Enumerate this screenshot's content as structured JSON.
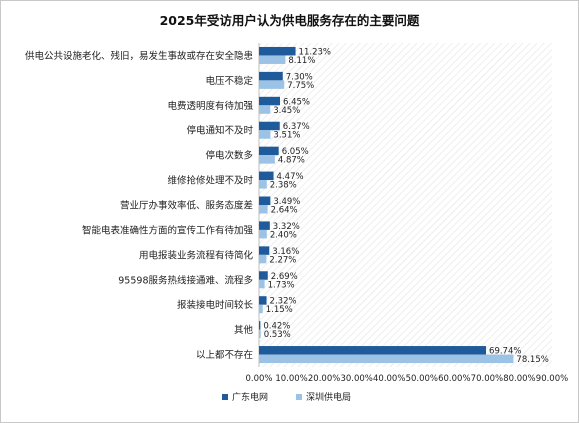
{
  "chart_data": {
    "type": "bar",
    "orientation": "horizontal",
    "title": "2025年受访用户认为供电服务存在的主要问题",
    "categories": [
      "供电公共设施老化、残旧，易发生事故或存在安全隐患",
      "电压不稳定",
      "电费透明度有待加强",
      "停电通知不及时",
      "停电次数多",
      "维修抢修处理不及时",
      "营业厅办事效率低、服务态度差",
      "智能电表准确性方面的宣传工作有待加强",
      "用电报装业务流程有待简化",
      "95598服务热线接通难、流程多",
      "报装接电时间较长",
      "其他",
      "以上都不存在"
    ],
    "series": [
      {
        "name": "广东电网",
        "color": "#1f5b9a",
        "values": [
          11.23,
          7.3,
          6.45,
          6.37,
          6.05,
          4.47,
          3.49,
          3.32,
          3.16,
          2.69,
          2.32,
          0.42,
          69.74
        ],
        "labels": [
          "11.23%",
          "7.30%",
          "6.45%",
          "6.37%",
          "6.05%",
          "4.47%",
          "3.49%",
          "3.32%",
          "3.16%",
          "2.69%",
          "2.32%",
          "0.42%",
          "69.74%"
        ]
      },
      {
        "name": "深圳供电局",
        "color": "#9cc3e6",
        "values": [
          8.11,
          7.75,
          3.45,
          3.51,
          4.87,
          2.38,
          2.64,
          2.4,
          2.27,
          1.73,
          1.15,
          0.53,
          78.15
        ],
        "labels": [
          "8.11%",
          "7.75%",
          "3.45%",
          "3.51%",
          "4.87%",
          "2.38%",
          "2.64%",
          "2.40%",
          "2.27%",
          "1.73%",
          "1.15%",
          "0.53%",
          "78.15%"
        ]
      }
    ],
    "xlim": [
      0,
      90
    ],
    "xticks": [
      "0.00%",
      "10.00%",
      "20.00%",
      "30.00%",
      "40.00%",
      "50.00%",
      "60.00%",
      "70.00%",
      "80.00%",
      "90.00%"
    ],
    "legend_position": "bottom"
  }
}
